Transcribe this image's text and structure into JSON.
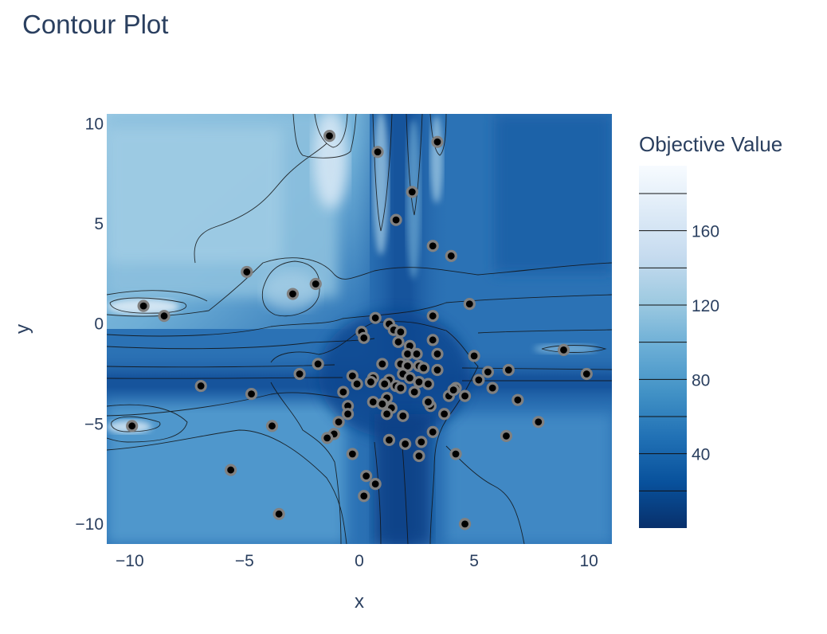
{
  "chart_data": {
    "type": "contour",
    "title": "Contour Plot",
    "xlabel": "x",
    "ylabel": "y",
    "xlim": [
      -11,
      11
    ],
    "ylim": [
      -11,
      10.5
    ],
    "xticks": [
      -10,
      -5,
      0,
      5,
      10
    ],
    "xtick_labels": [
      "−10",
      "−5",
      "0",
      "5",
      "10"
    ],
    "yticks": [
      -10,
      -5,
      0,
      5,
      10
    ],
    "ytick_labels": [
      "−10",
      "−5",
      "0",
      "5",
      "10"
    ],
    "colorbar": {
      "title": "Objective Value",
      "range": [
        0,
        195
      ],
      "ticks": [
        40,
        80,
        120,
        160
      ],
      "tick_labels": [
        "40",
        "80",
        "120",
        "160"
      ],
      "contour_levels": [
        20,
        40,
        60,
        80,
        100,
        120,
        140,
        160,
        180
      ]
    },
    "colorscale": [
      "#08306b",
      "#08519c",
      "#2171b5",
      "#4292c6",
      "#6baed6",
      "#9ecae1",
      "#c6dbef",
      "#deebf7",
      "#f7fbff"
    ],
    "marker_color": "#000000",
    "marker_outline": "#808080",
    "points": [
      [
        -1.3,
        9.4
      ],
      [
        0.8,
        8.6
      ],
      [
        3.4,
        9.1
      ],
      [
        2.3,
        6.6
      ],
      [
        1.6,
        5.2
      ],
      [
        3.2,
        3.9
      ],
      [
        4.0,
        3.4
      ],
      [
        -4.9,
        2.6
      ],
      [
        -1.9,
        2.0
      ],
      [
        -2.9,
        1.5
      ],
      [
        4.8,
        1.0
      ],
      [
        -9.4,
        0.9
      ],
      [
        -8.5,
        0.4
      ],
      [
        0.7,
        0.3
      ],
      [
        3.2,
        0.4
      ],
      [
        0.1,
        -0.4
      ],
      [
        0.2,
        -0.7
      ],
      [
        1.3,
        0.0
      ],
      [
        1.5,
        -0.3
      ],
      [
        1.8,
        -0.4
      ],
      [
        3.2,
        -0.8
      ],
      [
        1.7,
        -0.9
      ],
      [
        2.2,
        -1.1
      ],
      [
        2.1,
        -1.5
      ],
      [
        2.5,
        -1.5
      ],
      [
        3.4,
        -1.5
      ],
      [
        5.0,
        -1.6
      ],
      [
        8.9,
        -1.3
      ],
      [
        -1.8,
        -2.0
      ],
      [
        1.0,
        -2.0
      ],
      [
        1.8,
        -2.0
      ],
      [
        2.1,
        -2.1
      ],
      [
        2.6,
        -2.1
      ],
      [
        2.8,
        -2.2
      ],
      [
        3.4,
        -2.3
      ],
      [
        6.5,
        -2.3
      ],
      [
        5.6,
        -2.4
      ],
      [
        -2.6,
        -2.5
      ],
      [
        9.9,
        -2.5
      ],
      [
        -0.3,
        -2.6
      ],
      [
        0.6,
        -2.7
      ],
      [
        1.3,
        -2.8
      ],
      [
        1.9,
        -2.5
      ],
      [
        2.2,
        -2.7
      ],
      [
        5.2,
        -2.8
      ],
      [
        0.5,
        -2.9
      ],
      [
        -0.1,
        -3.0
      ],
      [
        1.1,
        -3.0
      ],
      [
        1.6,
        -3.1
      ],
      [
        2.6,
        -2.9
      ],
      [
        3.0,
        -3.0
      ],
      [
        1.8,
        -3.2
      ],
      [
        -6.9,
        -3.1
      ],
      [
        5.8,
        -3.2
      ],
      [
        4.2,
        -3.2
      ],
      [
        -0.7,
        -3.4
      ],
      [
        2.4,
        -3.4
      ],
      [
        -4.7,
        -3.5
      ],
      [
        3.9,
        -3.6
      ],
      [
        4.6,
        -3.6
      ],
      [
        1.2,
        -3.7
      ],
      [
        4.1,
        -3.3
      ],
      [
        6.9,
        -3.8
      ],
      [
        0.6,
        -3.9
      ],
      [
        1.0,
        -4.0
      ],
      [
        1.4,
        -4.2
      ],
      [
        3.1,
        -4.1
      ],
      [
        3.0,
        -3.9
      ],
      [
        -0.5,
        -4.1
      ],
      [
        -0.5,
        -4.5
      ],
      [
        1.2,
        -4.5
      ],
      [
        1.9,
        -4.6
      ],
      [
        3.7,
        -4.5
      ],
      [
        -0.9,
        -4.9
      ],
      [
        7.8,
        -4.9
      ],
      [
        -3.8,
        -5.1
      ],
      [
        -9.9,
        -5.1
      ],
      [
        3.2,
        -5.4
      ],
      [
        -1.1,
        -5.5
      ],
      [
        -1.4,
        -5.7
      ],
      [
        1.3,
        -5.8
      ],
      [
        2.0,
        -6.0
      ],
      [
        2.7,
        -5.9
      ],
      [
        6.4,
        -5.6
      ],
      [
        -0.3,
        -6.5
      ],
      [
        2.6,
        -6.6
      ],
      [
        4.2,
        -6.5
      ],
      [
        -5.6,
        -7.3
      ],
      [
        0.3,
        -7.6
      ],
      [
        0.7,
        -8.0
      ],
      [
        0.2,
        -8.6
      ],
      [
        -3.5,
        -9.5
      ],
      [
        4.6,
        -10.0
      ]
    ]
  }
}
